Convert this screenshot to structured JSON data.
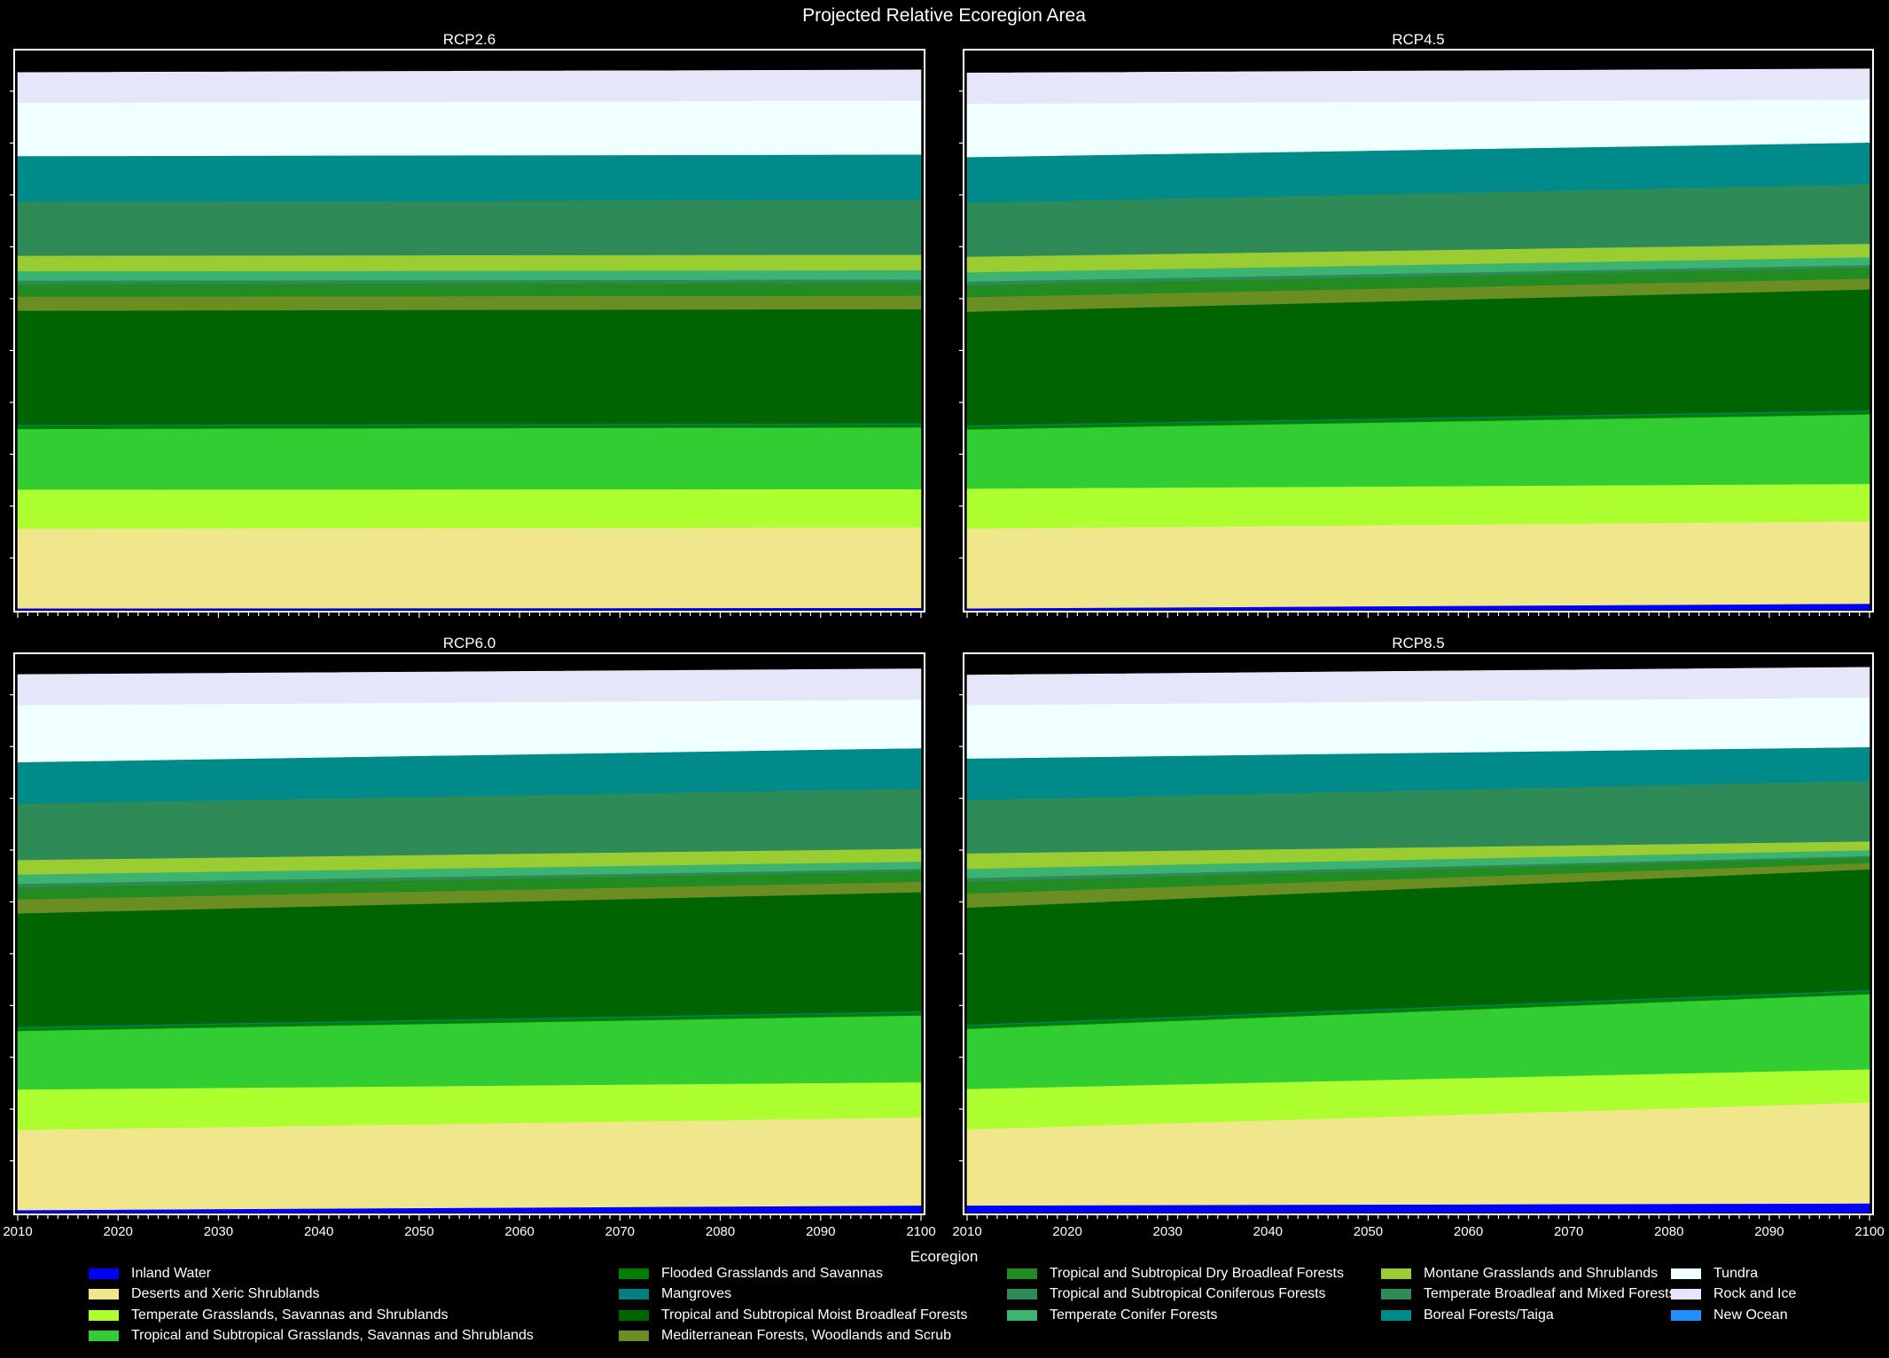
{
  "chart_data": {
    "type": "area",
    "title": "Projected Relative Ecoregion Area",
    "xlabel": "Ecoregion",
    "ylabel": "",
    "x_range": [
      2010,
      2100
    ],
    "x_ticks": [
      2010,
      2020,
      2030,
      2040,
      2050,
      2060,
      2070,
      2080,
      2090,
      2100
    ],
    "ylim": [
      0,
      1.08
    ],
    "grid": false,
    "legend_position": "bottom",
    "stacking": "stacked, relative share of total area; upper layers Tundra and Rock and Ice, band above stack is empty",
    "series_legend": [
      {
        "name": "Inland Water",
        "color": "#0000ff"
      },
      {
        "name": "Deserts and Xeric Shrublands",
        "color": "#f0e68c"
      },
      {
        "name": "Temperate Grasslands, Savannas and Shrublands",
        "color": "#adff2f"
      },
      {
        "name": "Tropical and Subtropical Grasslands, Savannas and Shrublands",
        "color": "#32cd32"
      },
      {
        "name": "Flooded Grasslands and Savannas",
        "color": "#008000"
      },
      {
        "name": "Mangroves",
        "color": "#008080"
      },
      {
        "name": "Tropical and Subtropical Moist Broadleaf Forests",
        "color": "#006400"
      },
      {
        "name": "Mediterranean Forests, Woodlands and Scrub",
        "color": "#6b8e23"
      },
      {
        "name": "Tropical and Subtropical Dry Broadleaf Forests",
        "color": "#228b22"
      },
      {
        "name": "Tropical and Subtropical Coniferous Forests",
        "color": "#2e8b57"
      },
      {
        "name": "Temperate Conifer Forests",
        "color": "#3cb371"
      },
      {
        "name": "Montane Grasslands and Shrublands",
        "color": "#9acd32"
      },
      {
        "name": "Temperate Broadleaf and Mixed Forests",
        "color": "#2e8b57"
      },
      {
        "name": "Boreal Forests/Taiga",
        "color": "#008b8b"
      },
      {
        "name": "Tundra",
        "color": "#f0ffff"
      },
      {
        "name": "Rock and Ice",
        "color": "#e6e6fa"
      },
      {
        "name": "New Ocean",
        "color": "#1e90ff"
      }
    ],
    "panels": [
      {
        "title": "RCP2.6",
        "years": [
          2010,
          2100
        ],
        "series": [
          {
            "name": "Inland Water",
            "values": [
              0.003,
              0.004
            ]
          },
          {
            "name": "Deserts and Xeric Shrublands",
            "values": [
              0.154,
              0.155
            ]
          },
          {
            "name": "Temperate Grasslands, Savannas and Shrublands",
            "values": [
              0.075,
              0.074
            ]
          },
          {
            "name": "Tropical and Subtropical Grasslands, Savannas and Shrublands",
            "values": [
              0.117,
              0.119
            ]
          },
          {
            "name": "Flooded Grasslands and Savannas",
            "values": [
              0.006,
              0.006
            ]
          },
          {
            "name": "Mangroves",
            "values": [
              0.002,
              0.002
            ]
          },
          {
            "name": "Tropical and Subtropical Moist Broadleaf Forests",
            "values": [
              0.22,
              0.22
            ]
          },
          {
            "name": "Mediterranean Forests, Woodlands and Scrub",
            "values": [
              0.027,
              0.026
            ]
          },
          {
            "name": "Tropical and Subtropical Dry Broadleaf Forests",
            "values": [
              0.024,
              0.024
            ]
          },
          {
            "name": "Tropical and Subtropical Coniferous Forests",
            "values": [
              0.007,
              0.007
            ]
          },
          {
            "name": "Temperate Conifer Forests",
            "values": [
              0.018,
              0.018
            ]
          },
          {
            "name": "Montane Grasslands and Shrublands",
            "values": [
              0.03,
              0.03
            ]
          },
          {
            "name": "Temperate Broadleaf and Mixed Forests",
            "values": [
              0.104,
              0.106
            ]
          },
          {
            "name": "Boreal Forests/Taiga",
            "values": [
              0.088,
              0.087
            ]
          },
          {
            "name": "Tundra",
            "values": [
              0.103,
              0.104
            ]
          },
          {
            "name": "Rock and Ice",
            "values": [
              0.058,
              0.059
            ]
          }
        ]
      },
      {
        "title": "RCP4.5",
        "years": [
          2010,
          2100
        ],
        "series": [
          {
            "name": "Inland Water",
            "values": [
              0.003,
              0.012
            ]
          },
          {
            "name": "Deserts and Xeric Shrublands",
            "values": [
              0.154,
              0.159
            ]
          },
          {
            "name": "Temperate Grasslands, Savannas and Shrublands",
            "values": [
              0.077,
              0.072
            ]
          },
          {
            "name": "Tropical and Subtropical Grasslands, Savannas and Shrublands",
            "values": [
              0.114,
              0.134
            ]
          },
          {
            "name": "Flooded Grasslands and Savannas",
            "values": [
              0.006,
              0.006
            ]
          },
          {
            "name": "Mangroves",
            "values": [
              0.002,
              0.002
            ]
          },
          {
            "name": "Tropical and Subtropical Moist Broadleaf Forests",
            "values": [
              0.219,
              0.233
            ]
          },
          {
            "name": "Mediterranean Forests, Woodlands and Scrub",
            "values": [
              0.028,
              0.021
            ]
          },
          {
            "name": "Tropical and Subtropical Dry Broadleaf Forests",
            "values": [
              0.023,
              0.021
            ]
          },
          {
            "name": "Tropical and Subtropical Coniferous Forests",
            "values": [
              0.007,
              0.005
            ]
          },
          {
            "name": "Temperate Conifer Forests",
            "values": [
              0.018,
              0.015
            ]
          },
          {
            "name": "Montane Grasslands and Shrublands",
            "values": [
              0.03,
              0.026
            ]
          },
          {
            "name": "Temperate Broadleaf and Mixed Forests",
            "values": [
              0.104,
              0.115
            ]
          },
          {
            "name": "Boreal Forests/Taiga",
            "values": [
              0.088,
              0.08
            ]
          },
          {
            "name": "Tundra",
            "values": [
              0.103,
              0.083
            ]
          },
          {
            "name": "Rock and Ice",
            "values": [
              0.059,
              0.059
            ]
          }
        ]
      },
      {
        "title": "RCP6.0",
        "years": [
          2010,
          2100
        ],
        "series": [
          {
            "name": "Inland Water",
            "values": [
              0.005,
              0.014
            ]
          },
          {
            "name": "Deserts and Xeric Shrublands",
            "values": [
              0.155,
              0.17
            ]
          },
          {
            "name": "Temperate Grasslands, Savannas and Shrublands",
            "values": [
              0.078,
              0.068
            ]
          },
          {
            "name": "Tropical and Subtropical Grasslands, Savannas and Shrublands",
            "values": [
              0.113,
              0.129
            ]
          },
          {
            "name": "Flooded Grasslands and Savannas",
            "values": [
              0.006,
              0.006
            ]
          },
          {
            "name": "Mangroves",
            "values": [
              0.002,
              0.002
            ]
          },
          {
            "name": "Tropical and Subtropical Moist Broadleaf Forests",
            "values": [
              0.219,
              0.23
            ]
          },
          {
            "name": "Mediterranean Forests, Woodlands and Scrub",
            "values": [
              0.027,
              0.02
            ]
          },
          {
            "name": "Tropical and Subtropical Dry Broadleaf Forests",
            "values": [
              0.023,
              0.02
            ]
          },
          {
            "name": "Tropical and Subtropical Coniferous Forests",
            "values": [
              0.007,
              0.005
            ]
          },
          {
            "name": "Temperate Conifer Forests",
            "values": [
              0.018,
              0.014
            ]
          },
          {
            "name": "Montane Grasslands and Shrublands",
            "values": [
              0.028,
              0.025
            ]
          },
          {
            "name": "Temperate Broadleaf and Mixed Forests",
            "values": [
              0.109,
              0.116
            ]
          },
          {
            "name": "Boreal Forests/Taiga",
            "values": [
              0.08,
              0.078
            ]
          },
          {
            "name": "Tundra",
            "values": [
              0.11,
              0.094
            ]
          },
          {
            "name": "Rock and Ice",
            "values": [
              0.059,
              0.059
            ]
          }
        ]
      },
      {
        "title": "RCP8.5",
        "years": [
          2010,
          2100
        ],
        "series": [
          {
            "name": "Inland Water",
            "values": [
              0.014,
              0.018
            ]
          },
          {
            "name": "Deserts and Xeric Shrublands",
            "values": [
              0.147,
              0.195
            ]
          },
          {
            "name": "Temperate Grasslands, Savannas and Shrublands",
            "values": [
              0.078,
              0.064
            ]
          },
          {
            "name": "Tropical and Subtropical Grasslands, Savannas and Shrublands",
            "values": [
              0.116,
              0.145
            ]
          },
          {
            "name": "Flooded Grasslands and Savannas",
            "values": [
              0.006,
              0.006
            ]
          },
          {
            "name": "Mangroves",
            "values": [
              0.002,
              0.002
            ]
          },
          {
            "name": "Tropical and Subtropical Moist Broadleaf Forests",
            "values": [
              0.226,
              0.233
            ]
          },
          {
            "name": "Mediterranean Forests, Woodlands and Scrub",
            "values": [
              0.027,
              0.012
            ]
          },
          {
            "name": "Tropical and Subtropical Dry Broadleaf Forests",
            "values": [
              0.023,
              0.011
            ]
          },
          {
            "name": "Tropical and Subtropical Coniferous Forests",
            "values": [
              0.007,
              0.003
            ]
          },
          {
            "name": "Temperate Conifer Forests",
            "values": [
              0.018,
              0.011
            ]
          },
          {
            "name": "Montane Grasslands and Shrublands",
            "values": [
              0.03,
              0.017
            ]
          },
          {
            "name": "Temperate Broadleaf and Mixed Forests",
            "values": [
              0.103,
              0.117
            ]
          },
          {
            "name": "Boreal Forests/Taiga",
            "values": [
              0.08,
              0.065
            ]
          },
          {
            "name": "Tundra",
            "values": [
              0.103,
              0.096
            ]
          },
          {
            "name": "Rock and Ice",
            "values": [
              0.058,
              0.058
            ]
          }
        ]
      }
    ]
  }
}
